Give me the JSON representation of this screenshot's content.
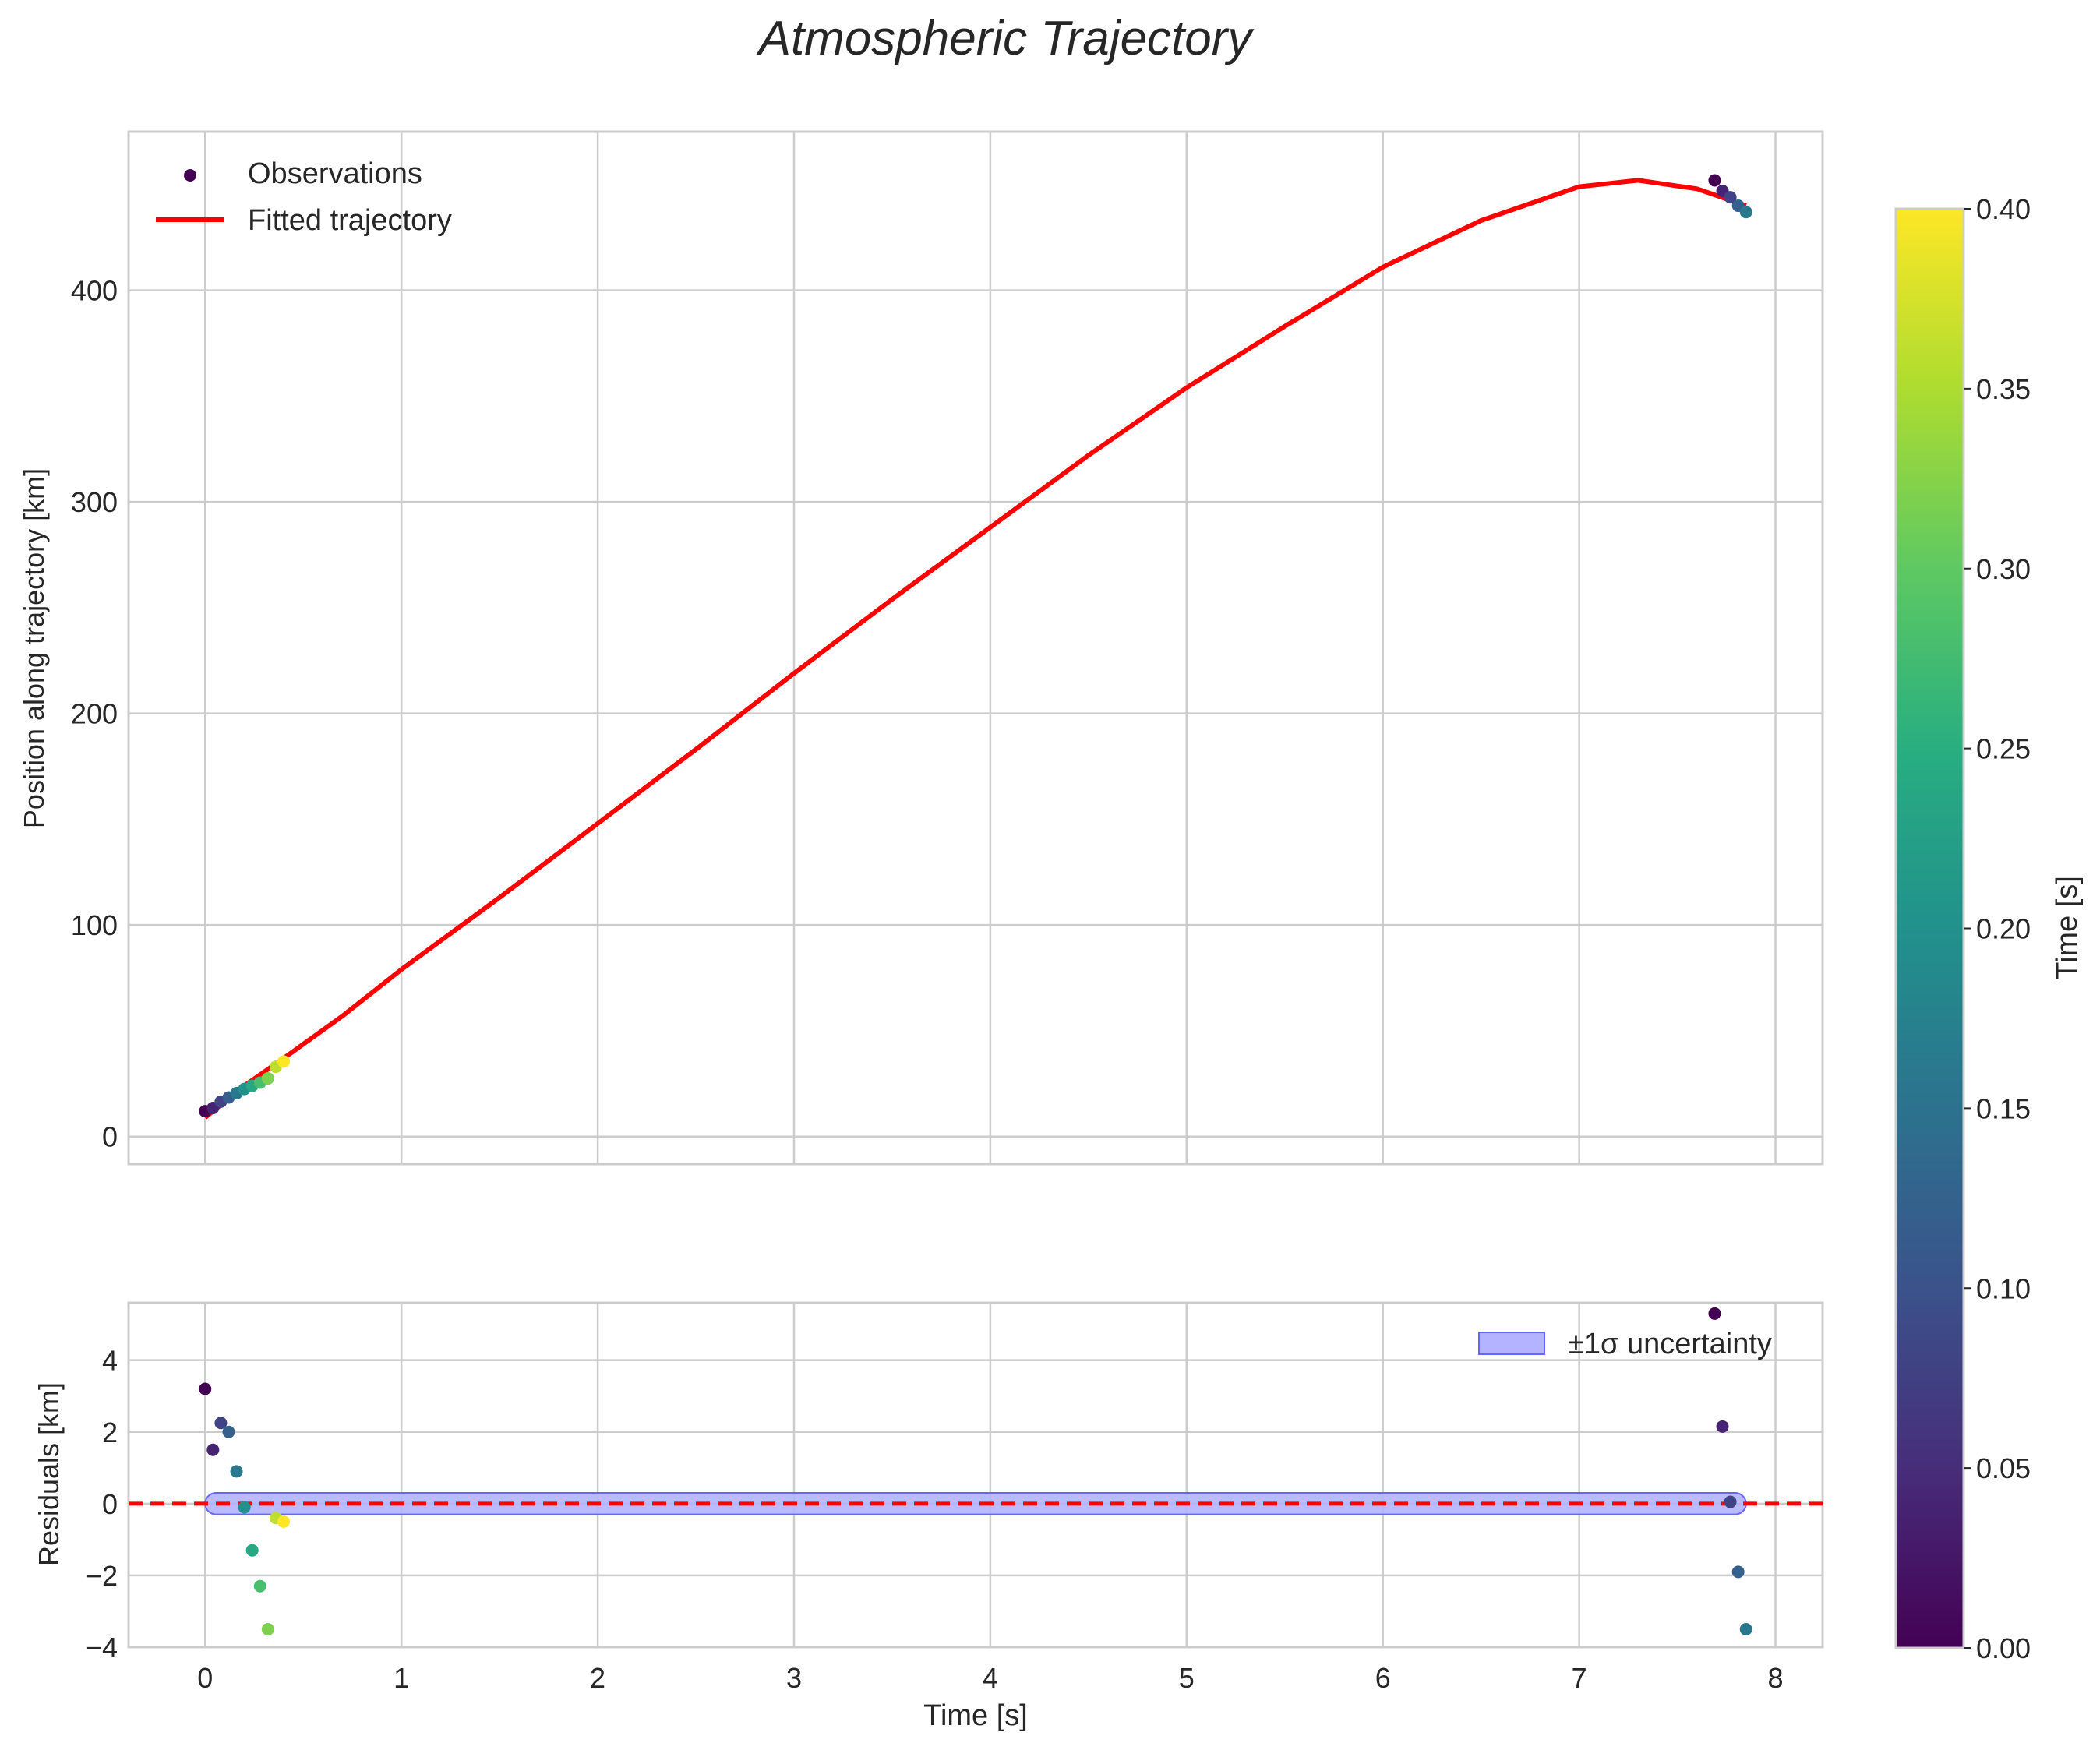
{
  "title": "Atmospheric Trajectory",
  "colors": {
    "background": "#ffffff",
    "axes_edge": "#cccccc",
    "grid": "#cccccc",
    "fit_line": "#ff0000",
    "zero_line": "#ff0000",
    "band_fill": "#b3b3ff",
    "band_edge": "#6666ff",
    "text": "#262626"
  },
  "chart_data": [
    {
      "id": "main",
      "type": "scatter",
      "xlabel": "",
      "ylabel": "Position along trajectory [km]",
      "xlim": [
        -0.39,
        8.24
      ],
      "ylim": [
        -13,
        475
      ],
      "yticks": [
        0,
        100,
        200,
        300,
        400
      ],
      "ytick_labels": [
        "0",
        "100",
        "200",
        "300",
        "400"
      ],
      "xticks": [
        0,
        1,
        2,
        3,
        4,
        5,
        6,
        7,
        8
      ],
      "grid": true,
      "legend": {
        "location": "upper-left",
        "entries": [
          "Observations",
          "Fitted trajectory"
        ]
      },
      "series": [
        {
          "name": "Observations",
          "kind": "scatter",
          "color_by": "t_color",
          "points": [
            {
              "x": 0.0,
              "y": 12.0,
              "c": 0.0
            },
            {
              "x": 0.04,
              "y": 13.5,
              "c": 0.04
            },
            {
              "x": 0.08,
              "y": 16.5,
              "c": 0.08
            },
            {
              "x": 0.12,
              "y": 18.5,
              "c": 0.12
            },
            {
              "x": 0.16,
              "y": 20.5,
              "c": 0.16
            },
            {
              "x": 0.2,
              "y": 22.5,
              "c": 0.2
            },
            {
              "x": 0.24,
              "y": 24.0,
              "c": 0.24
            },
            {
              "x": 0.28,
              "y": 25.5,
              "c": 0.28
            },
            {
              "x": 0.32,
              "y": 27.5,
              "c": 0.32
            },
            {
              "x": 0.36,
              "y": 33.0,
              "c": 0.36
            },
            {
              "x": 0.4,
              "y": 35.5,
              "c": 0.4
            },
            {
              "x": 7.69,
              "y": 452.0,
              "c": 0.0
            },
            {
              "x": 7.73,
              "y": 447.0,
              "c": 0.04
            },
            {
              "x": 7.77,
              "y": 444.0,
              "c": 0.08
            },
            {
              "x": 7.81,
              "y": 440.0,
              "c": 0.12
            },
            {
              "x": 7.85,
              "y": 437.0,
              "c": 0.16
            }
          ]
        },
        {
          "name": "Fitted trajectory",
          "kind": "line",
          "color": "#ff0000",
          "x": [
            0.0,
            0.2,
            0.4,
            0.7,
            1.0,
            1.5,
            2.0,
            2.5,
            3.0,
            3.5,
            4.0,
            4.5,
            5.0,
            5.5,
            6.0,
            6.5,
            7.0,
            7.3,
            7.6,
            7.85
          ],
          "y": [
            9,
            24,
            37,
            57,
            79,
            113,
            148,
            183,
            219,
            254,
            288,
            322,
            354,
            383,
            411,
            433,
            449,
            452,
            448,
            440
          ]
        }
      ]
    },
    {
      "id": "residuals",
      "type": "scatter",
      "xlabel": "Time [s]",
      "ylabel": "Residuals [km]",
      "xlim": [
        -0.39,
        8.24
      ],
      "ylim": [
        -4,
        5.6
      ],
      "yticks": [
        -4,
        -2,
        0,
        2,
        4
      ],
      "ytick_labels": [
        "−4",
        "−2",
        "0",
        "2",
        "4"
      ],
      "xticks": [
        0,
        1,
        2,
        3,
        4,
        5,
        6,
        7,
        8
      ],
      "xtick_labels": [
        "0",
        "1",
        "2",
        "3",
        "4",
        "5",
        "6",
        "7",
        "8"
      ],
      "grid": true,
      "legend": {
        "location": "upper-right",
        "entries": [
          "±1σ uncertainty"
        ]
      },
      "zero_line": 0,
      "band": {
        "name": "±1σ uncertainty",
        "x": [
          0.0,
          7.85
        ],
        "lower": -0.3,
        "upper": 0.3
      },
      "series": [
        {
          "name": "Residuals",
          "kind": "scatter",
          "color_by": "t_color",
          "points": [
            {
              "x": 0.0,
              "y": 3.2,
              "c": 0.0
            },
            {
              "x": 0.04,
              "y": 1.5,
              "c": 0.04
            },
            {
              "x": 0.08,
              "y": 2.25,
              "c": 0.08
            },
            {
              "x": 0.12,
              "y": 2.0,
              "c": 0.12
            },
            {
              "x": 0.16,
              "y": 0.9,
              "c": 0.16
            },
            {
              "x": 0.2,
              "y": -0.1,
              "c": 0.2
            },
            {
              "x": 0.24,
              "y": -1.3,
              "c": 0.24
            },
            {
              "x": 0.28,
              "y": -2.3,
              "c": 0.28
            },
            {
              "x": 0.32,
              "y": -3.5,
              "c": 0.32
            },
            {
              "x": 0.36,
              "y": -0.4,
              "c": 0.36
            },
            {
              "x": 0.4,
              "y": -0.5,
              "c": 0.4
            },
            {
              "x": 7.69,
              "y": 5.3,
              "c": 0.0
            },
            {
              "x": 7.73,
              "y": 2.15,
              "c": 0.04
            },
            {
              "x": 7.77,
              "y": 0.05,
              "c": 0.08
            },
            {
              "x": 7.81,
              "y": -1.9,
              "c": 0.12
            },
            {
              "x": 7.85,
              "y": -3.5,
              "c": 0.16
            }
          ]
        }
      ]
    },
    {
      "id": "colorbar",
      "type": "heatmap",
      "label": "Time [s]",
      "colormap": "viridis",
      "range": [
        0.0,
        0.4
      ],
      "ticks": [
        0.0,
        0.05,
        0.1,
        0.15,
        0.2,
        0.25,
        0.3,
        0.35,
        0.4
      ],
      "tick_labels": [
        "0.00",
        "0.05",
        "0.10",
        "0.15",
        "0.20",
        "0.25",
        "0.30",
        "0.35",
        "0.40"
      ]
    }
  ]
}
